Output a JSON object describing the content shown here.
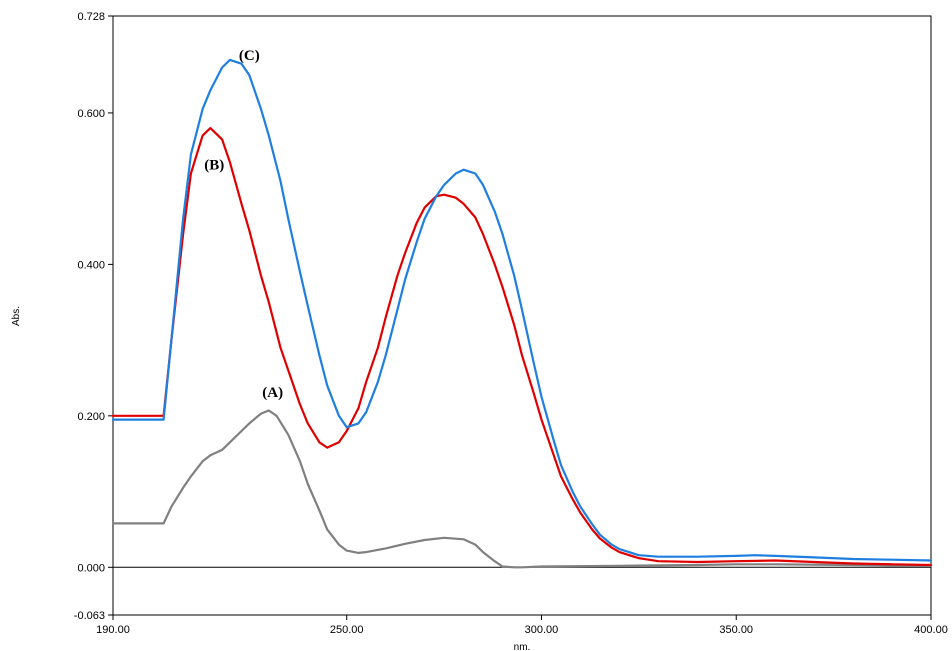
{
  "chart_data": {
    "type": "line",
    "xlabel": "nm.",
    "ylabel": "Abs.",
    "xlim": [
      190.0,
      400.0
    ],
    "ylim": [
      -0.063,
      0.728
    ],
    "x_ticks": [
      190.0,
      250.0,
      300.0,
      350.0,
      400.0
    ],
    "x_tick_labels": [
      "190.00",
      "250.00",
      "300.00",
      "350.00",
      "400.00"
    ],
    "y_ticks": [
      -0.063,
      0.0,
      0.2,
      0.4,
      0.6,
      0.728
    ],
    "y_tick_labels": [
      "-0.063",
      "0.000",
      "0.200",
      "0.400",
      "0.600",
      "0.728"
    ],
    "zero_line": 0.0,
    "grid": false,
    "annotations": [
      {
        "text": "(A)",
        "x": 231,
        "y": 0.225
      },
      {
        "text": "(B)",
        "x": 216,
        "y": 0.525
      },
      {
        "text": "(C)",
        "x": 225,
        "y": 0.67
      }
    ],
    "series": [
      {
        "name": "(A)",
        "color": "#808080",
        "x": [
          190,
          195,
          200,
          203,
          205,
          208,
          210,
          213,
          215,
          218,
          220,
          223,
          225,
          228,
          230,
          232,
          235,
          238,
          240,
          243,
          245,
          248,
          250,
          253,
          255,
          260,
          265,
          270,
          275,
          280,
          283,
          285,
          288,
          290,
          293,
          295,
          300,
          320,
          340,
          350,
          360,
          380,
          400
        ],
        "y": [
          0.058,
          0.058,
          0.058,
          0.058,
          0.08,
          0.105,
          0.12,
          0.14,
          0.148,
          0.155,
          0.165,
          0.18,
          0.19,
          0.203,
          0.207,
          0.2,
          0.175,
          0.14,
          0.11,
          0.075,
          0.05,
          0.03,
          0.022,
          0.019,
          0.02,
          0.025,
          0.031,
          0.036,
          0.039,
          0.037,
          0.03,
          0.02,
          0.008,
          0.001,
          0.0,
          0.0,
          0.001,
          0.002,
          0.003,
          0.004,
          0.004,
          0.003,
          0.002
        ]
      },
      {
        "name": "(B)",
        "color": "#e00000",
        "x": [
          190,
          195,
          200,
          203,
          205,
          208,
          210,
          213,
          215,
          218,
          220,
          223,
          225,
          228,
          230,
          233,
          235,
          238,
          240,
          243,
          245,
          248,
          250,
          253,
          255,
          258,
          260,
          263,
          265,
          268,
          270,
          273,
          275,
          278,
          280,
          283,
          285,
          288,
          290,
          293,
          295,
          298,
          300,
          303,
          305,
          308,
          310,
          313,
          315,
          318,
          320,
          325,
          330,
          340,
          350,
          360,
          370,
          380,
          390,
          400
        ],
        "y": [
          0.2,
          0.2,
          0.2,
          0.2,
          0.3,
          0.44,
          0.52,
          0.57,
          0.58,
          0.565,
          0.535,
          0.48,
          0.445,
          0.385,
          0.35,
          0.29,
          0.26,
          0.215,
          0.19,
          0.165,
          0.158,
          0.165,
          0.18,
          0.21,
          0.245,
          0.29,
          0.33,
          0.385,
          0.415,
          0.455,
          0.475,
          0.49,
          0.492,
          0.488,
          0.48,
          0.462,
          0.44,
          0.4,
          0.37,
          0.32,
          0.28,
          0.23,
          0.195,
          0.15,
          0.12,
          0.09,
          0.072,
          0.05,
          0.038,
          0.026,
          0.02,
          0.012,
          0.008,
          0.007,
          0.008,
          0.009,
          0.007,
          0.005,
          0.004,
          0.003
        ]
      },
      {
        "name": "(C)",
        "color": "#1f7fe0",
        "x": [
          190,
          195,
          200,
          203,
          205,
          208,
          210,
          213,
          215,
          218,
          220,
          223,
          225,
          228,
          230,
          233,
          235,
          238,
          240,
          243,
          245,
          248,
          250,
          253,
          255,
          258,
          260,
          263,
          265,
          268,
          270,
          273,
          275,
          278,
          280,
          283,
          285,
          288,
          290,
          293,
          295,
          298,
          300,
          303,
          305,
          308,
          310,
          313,
          315,
          318,
          320,
          325,
          330,
          340,
          350,
          355,
          360,
          370,
          380,
          390,
          400
        ],
        "y": [
          0.195,
          0.195,
          0.195,
          0.195,
          0.3,
          0.46,
          0.545,
          0.605,
          0.63,
          0.66,
          0.67,
          0.665,
          0.65,
          0.605,
          0.57,
          0.51,
          0.46,
          0.39,
          0.345,
          0.28,
          0.24,
          0.2,
          0.185,
          0.19,
          0.205,
          0.245,
          0.28,
          0.34,
          0.38,
          0.43,
          0.46,
          0.49,
          0.505,
          0.52,
          0.525,
          0.52,
          0.505,
          0.47,
          0.44,
          0.385,
          0.34,
          0.27,
          0.225,
          0.17,
          0.135,
          0.1,
          0.08,
          0.057,
          0.043,
          0.03,
          0.024,
          0.016,
          0.014,
          0.014,
          0.015,
          0.016,
          0.015,
          0.013,
          0.011,
          0.01,
          0.009
        ]
      }
    ]
  }
}
